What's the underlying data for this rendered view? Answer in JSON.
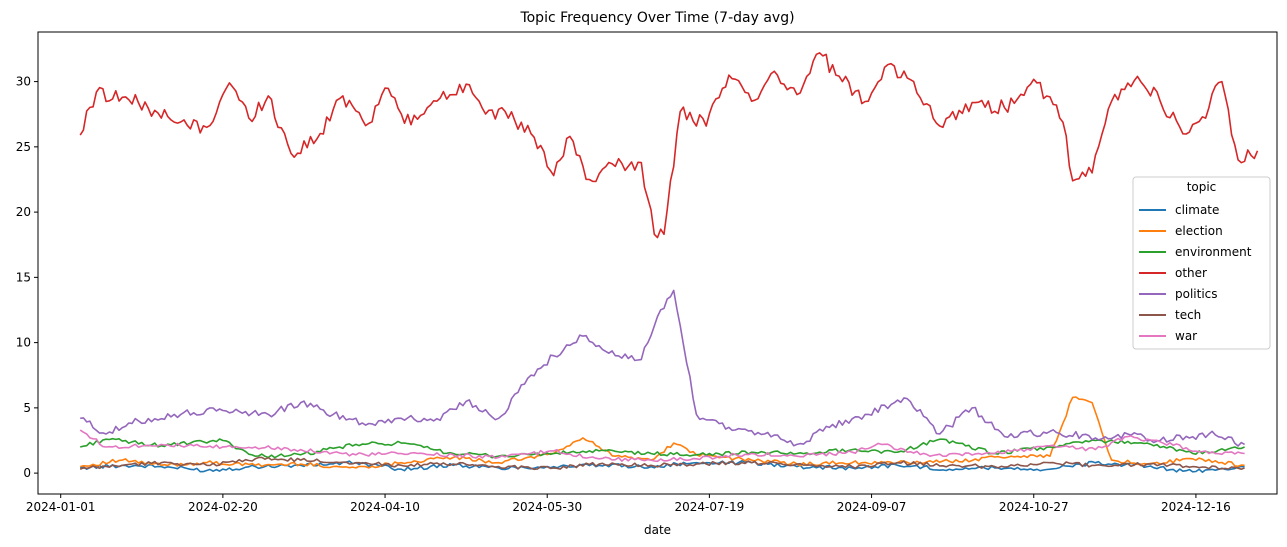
{
  "chart_data": {
    "type": "line",
    "title": "Topic Frequency Over Time (7-day avg)",
    "xlabel": "date",
    "ylabel": "",
    "xlim": [
      "2023-12-25",
      "2025-01-10"
    ],
    "ylim": [
      -1.6,
      33.8
    ],
    "x_ticks": [
      "2024-01-01",
      "2024-02-20",
      "2024-04-10",
      "2024-05-30",
      "2024-07-19",
      "2024-09-07",
      "2024-10-27",
      "2024-12-16"
    ],
    "y_ticks": [
      0,
      5,
      10,
      15,
      20,
      25,
      30
    ],
    "grid": false,
    "legend": {
      "title": "topic",
      "placement": "right"
    },
    "series": [
      {
        "name": "climate",
        "color": "#1f77b4",
        "points": [
          [
            "2024-01-07",
            0.4
          ],
          [
            "2024-01-20",
            0.6
          ],
          [
            "2024-02-01",
            0.5
          ],
          [
            "2024-02-15",
            0.2
          ],
          [
            "2024-03-01",
            0.5
          ],
          [
            "2024-03-15",
            0.6
          ],
          [
            "2024-04-01",
            0.8
          ],
          [
            "2024-04-15",
            0.3
          ],
          [
            "2024-05-01",
            0.6
          ],
          [
            "2024-05-15",
            0.4
          ],
          [
            "2024-06-01",
            0.5
          ],
          [
            "2024-06-15",
            0.6
          ],
          [
            "2024-07-01",
            0.5
          ],
          [
            "2024-07-15",
            0.8
          ],
          [
            "2024-08-01",
            0.8
          ],
          [
            "2024-08-15",
            0.5
          ],
          [
            "2024-09-01",
            0.4
          ],
          [
            "2024-09-15",
            0.6
          ],
          [
            "2024-10-01",
            0.3
          ],
          [
            "2024-10-15",
            0.4
          ],
          [
            "2024-11-01",
            0.3
          ],
          [
            "2024-11-15",
            0.8
          ],
          [
            "2024-12-01",
            0.5
          ],
          [
            "2024-12-15",
            0.1
          ],
          [
            "2024-12-31",
            0.5
          ]
        ]
      },
      {
        "name": "election",
        "color": "#ff7f0e",
        "points": [
          [
            "2024-01-07",
            0.5
          ],
          [
            "2024-01-20",
            1.0
          ],
          [
            "2024-02-01",
            0.6
          ],
          [
            "2024-02-15",
            0.8
          ],
          [
            "2024-03-01",
            0.6
          ],
          [
            "2024-03-15",
            0.7
          ],
          [
            "2024-04-01",
            0.4
          ],
          [
            "2024-04-15",
            0.8
          ],
          [
            "2024-05-01",
            1.2
          ],
          [
            "2024-05-15",
            0.8
          ],
          [
            "2024-06-01",
            1.5
          ],
          [
            "2024-06-10",
            2.7
          ],
          [
            "2024-06-20",
            1.3
          ],
          [
            "2024-07-01",
            1.0
          ],
          [
            "2024-07-08",
            2.3
          ],
          [
            "2024-07-15",
            1.4
          ],
          [
            "2024-08-01",
            1.0
          ],
          [
            "2024-08-15",
            0.7
          ],
          [
            "2024-09-01",
            0.8
          ],
          [
            "2024-09-15",
            0.8
          ],
          [
            "2024-10-01",
            0.9
          ],
          [
            "2024-10-20",
            1.3
          ],
          [
            "2024-11-01",
            1.3
          ],
          [
            "2024-11-08",
            5.8
          ],
          [
            "2024-11-14",
            5.4
          ],
          [
            "2024-11-20",
            1.0
          ],
          [
            "2024-12-01",
            0.7
          ],
          [
            "2024-12-15",
            1.1
          ],
          [
            "2024-12-31",
            0.6
          ]
        ]
      },
      {
        "name": "environment",
        "color": "#2ca02c",
        "points": [
          [
            "2024-01-07",
            2.0
          ],
          [
            "2024-01-15",
            2.6
          ],
          [
            "2024-02-01",
            2.1
          ],
          [
            "2024-02-10",
            2.3
          ],
          [
            "2024-02-20",
            2.5
          ],
          [
            "2024-03-01",
            1.3
          ],
          [
            "2024-03-15",
            1.4
          ],
          [
            "2024-04-01",
            2.2
          ],
          [
            "2024-04-15",
            2.3
          ],
          [
            "2024-05-01",
            1.5
          ],
          [
            "2024-05-15",
            1.3
          ],
          [
            "2024-06-01",
            1.5
          ],
          [
            "2024-06-15",
            1.7
          ],
          [
            "2024-07-01",
            1.5
          ],
          [
            "2024-07-15",
            1.4
          ],
          [
            "2024-08-01",
            1.6
          ],
          [
            "2024-08-15",
            1.5
          ],
          [
            "2024-09-01",
            1.8
          ],
          [
            "2024-09-15",
            1.6
          ],
          [
            "2024-09-28",
            2.6
          ],
          [
            "2024-10-15",
            1.5
          ],
          [
            "2024-11-01",
            2.0
          ],
          [
            "2024-11-15",
            2.5
          ],
          [
            "2024-12-01",
            2.3
          ],
          [
            "2024-12-15",
            1.5
          ],
          [
            "2024-12-31",
            2.0
          ]
        ]
      },
      {
        "name": "other",
        "color": "#d62728",
        "points": [
          [
            "2024-01-07",
            25.9
          ],
          [
            "2024-01-12",
            29.2
          ],
          [
            "2024-01-20",
            28.8
          ],
          [
            "2024-01-30",
            27.8
          ],
          [
            "2024-02-05",
            26.9
          ],
          [
            "2024-02-15",
            26.5
          ],
          [
            "2024-02-22",
            29.9
          ],
          [
            "2024-02-28",
            27.2
          ],
          [
            "2024-03-05",
            28.9
          ],
          [
            "2024-03-12",
            24.5
          ],
          [
            "2024-03-20",
            25.6
          ],
          [
            "2024-03-28",
            28.9
          ],
          [
            "2024-04-05",
            26.8
          ],
          [
            "2024-04-10",
            29.5
          ],
          [
            "2024-04-18",
            26.7
          ],
          [
            "2024-04-26",
            28.5
          ],
          [
            "2024-05-05",
            29.8
          ],
          [
            "2024-05-12",
            27.8
          ],
          [
            "2024-05-20",
            27.0
          ],
          [
            "2024-05-28",
            25.1
          ],
          [
            "2024-06-01",
            22.8
          ],
          [
            "2024-06-06",
            25.8
          ],
          [
            "2024-06-12",
            22.5
          ],
          [
            "2024-06-20",
            23.5
          ],
          [
            "2024-06-28",
            23.8
          ],
          [
            "2024-07-02",
            18.3
          ],
          [
            "2024-07-05",
            18.3
          ],
          [
            "2024-07-10",
            27.7
          ],
          [
            "2024-07-18",
            26.6
          ],
          [
            "2024-07-25",
            30.5
          ],
          [
            "2024-08-01",
            28.5
          ],
          [
            "2024-08-08",
            30.8
          ],
          [
            "2024-08-15",
            29.0
          ],
          [
            "2024-08-22",
            32.2
          ],
          [
            "2024-08-29",
            30.0
          ],
          [
            "2024-09-06",
            28.5
          ],
          [
            "2024-09-12",
            31.3
          ],
          [
            "2024-09-20",
            30.0
          ],
          [
            "2024-09-28",
            26.6
          ],
          [
            "2024-10-08",
            28.4
          ],
          [
            "2024-10-18",
            28.0
          ],
          [
            "2024-10-28",
            29.9
          ],
          [
            "2024-11-05",
            26.9
          ],
          [
            "2024-11-08",
            22.4
          ],
          [
            "2024-11-14",
            23.0
          ],
          [
            "2024-11-20",
            28.5
          ],
          [
            "2024-11-28",
            30.4
          ],
          [
            "2024-12-05",
            28.5
          ],
          [
            "2024-12-12",
            26.0
          ],
          [
            "2024-12-18",
            27.3
          ],
          [
            "2024-12-24",
            30.0
          ],
          [
            "2024-12-29",
            24.0
          ],
          [
            "2025-01-04",
            24.7
          ]
        ]
      },
      {
        "name": "politics",
        "color": "#9467bd",
        "points": [
          [
            "2024-01-07",
            4.2
          ],
          [
            "2024-01-15",
            3.0
          ],
          [
            "2024-01-25",
            4.0
          ],
          [
            "2024-02-05",
            4.5
          ],
          [
            "2024-02-20",
            4.8
          ],
          [
            "2024-03-05",
            4.5
          ],
          [
            "2024-03-15",
            5.4
          ],
          [
            "2024-03-25",
            4.5
          ],
          [
            "2024-04-05",
            3.8
          ],
          [
            "2024-04-15",
            4.2
          ],
          [
            "2024-04-25",
            4.0
          ],
          [
            "2024-05-05",
            5.5
          ],
          [
            "2024-05-15",
            4.2
          ],
          [
            "2024-05-25",
            7.5
          ],
          [
            "2024-06-01",
            9.0
          ],
          [
            "2024-06-10",
            10.5
          ],
          [
            "2024-06-20",
            9.0
          ],
          [
            "2024-06-28",
            8.7
          ],
          [
            "2024-07-03",
            12.0
          ],
          [
            "2024-07-08",
            14.0
          ],
          [
            "2024-07-15",
            4.5
          ],
          [
            "2024-07-25",
            3.5
          ],
          [
            "2024-08-05",
            3.0
          ],
          [
            "2024-08-15",
            2.2
          ],
          [
            "2024-08-25",
            3.5
          ],
          [
            "2024-09-05",
            4.5
          ],
          [
            "2024-09-18",
            5.7
          ],
          [
            "2024-09-28",
            3.0
          ],
          [
            "2024-10-08",
            5.0
          ],
          [
            "2024-10-18",
            2.8
          ],
          [
            "2024-11-01",
            3.2
          ],
          [
            "2024-11-15",
            2.7
          ],
          [
            "2024-11-25",
            3.0
          ],
          [
            "2024-12-05",
            2.5
          ],
          [
            "2024-12-20",
            3.0
          ],
          [
            "2024-12-31",
            2.2
          ]
        ]
      },
      {
        "name": "tech",
        "color": "#8c564b",
        "points": [
          [
            "2024-01-07",
            0.3
          ],
          [
            "2024-01-20",
            0.6
          ],
          [
            "2024-02-01",
            0.8
          ],
          [
            "2024-02-15",
            0.6
          ],
          [
            "2024-03-01",
            1.1
          ],
          [
            "2024-03-15",
            1.0
          ],
          [
            "2024-04-01",
            0.8
          ],
          [
            "2024-04-15",
            0.6
          ],
          [
            "2024-05-01",
            0.7
          ],
          [
            "2024-05-15",
            0.5
          ],
          [
            "2024-06-01",
            0.4
          ],
          [
            "2024-06-15",
            0.7
          ],
          [
            "2024-07-01",
            0.6
          ],
          [
            "2024-07-15",
            0.7
          ],
          [
            "2024-08-01",
            0.8
          ],
          [
            "2024-08-15",
            0.7
          ],
          [
            "2024-09-01",
            0.5
          ],
          [
            "2024-09-15",
            0.8
          ],
          [
            "2024-10-01",
            0.6
          ],
          [
            "2024-10-15",
            0.5
          ],
          [
            "2024-11-01",
            0.8
          ],
          [
            "2024-11-15",
            0.6
          ],
          [
            "2024-12-01",
            0.7
          ],
          [
            "2024-12-15",
            0.5
          ],
          [
            "2024-12-31",
            0.4
          ]
        ]
      },
      {
        "name": "war",
        "color": "#e377c2",
        "points": [
          [
            "2024-01-07",
            3.3
          ],
          [
            "2024-01-15",
            2.0
          ],
          [
            "2024-02-01",
            2.2
          ],
          [
            "2024-02-15",
            2.0
          ],
          [
            "2024-03-01",
            2.0
          ],
          [
            "2024-03-15",
            1.8
          ],
          [
            "2024-04-01",
            1.4
          ],
          [
            "2024-04-15",
            1.5
          ],
          [
            "2024-05-01",
            1.4
          ],
          [
            "2024-05-15",
            1.2
          ],
          [
            "2024-06-01",
            1.7
          ],
          [
            "2024-06-15",
            1.1
          ],
          [
            "2024-07-01",
            1.0
          ],
          [
            "2024-07-15",
            1.1
          ],
          [
            "2024-08-01",
            1.5
          ],
          [
            "2024-08-15",
            1.3
          ],
          [
            "2024-09-01",
            1.6
          ],
          [
            "2024-09-10",
            2.2
          ],
          [
            "2024-09-25",
            1.3
          ],
          [
            "2024-10-15",
            1.5
          ],
          [
            "2024-11-01",
            2.1
          ],
          [
            "2024-11-15",
            1.8
          ],
          [
            "2024-11-25",
            2.8
          ],
          [
            "2024-12-05",
            2.4
          ],
          [
            "2024-12-20",
            1.5
          ],
          [
            "2024-12-31",
            1.5
          ]
        ]
      }
    ]
  }
}
